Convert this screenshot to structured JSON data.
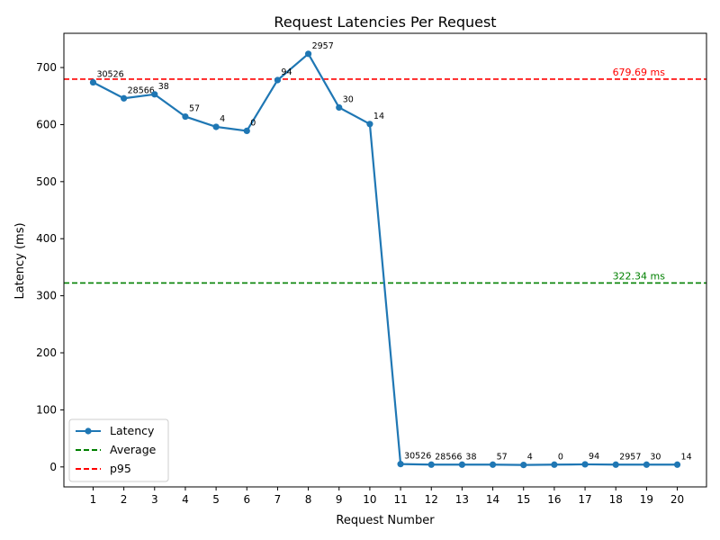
{
  "chart_data": {
    "type": "line",
    "title": "Request Latencies Per Request",
    "xlabel": "Request Number",
    "ylabel": "Latency (ms)",
    "x": [
      1,
      2,
      3,
      4,
      5,
      6,
      7,
      8,
      9,
      10,
      11,
      12,
      13,
      14,
      15,
      16,
      17,
      18,
      19,
      20
    ],
    "xlim": [
      0.05,
      20.95
    ],
    "ylim": [
      -35,
      760
    ],
    "yticks": [
      0,
      100,
      200,
      300,
      400,
      500,
      600,
      700
    ],
    "grid": false,
    "legend_position": "lower-left",
    "series": [
      {
        "name": "Latency",
        "color": "#1f77b4",
        "values": [
          674,
          646,
          653,
          614,
          596,
          589,
          678,
          724,
          630,
          601,
          5,
          4,
          4,
          4,
          3.5,
          4,
          4.5,
          4,
          4,
          4
        ],
        "point_labels": [
          "30526",
          "28566",
          "38",
          "57",
          "4",
          "0",
          "94",
          "2957",
          "30",
          "14",
          "30526",
          "28566",
          "38",
          "57",
          "4",
          "0",
          "94",
          "2957",
          "30",
          "14"
        ]
      }
    ],
    "reference_lines": [
      {
        "name": "Average",
        "value": 322.34,
        "label": "322.34 ms",
        "color": "#008000"
      },
      {
        "name": "p95",
        "value": 679.69,
        "label": "679.69 ms",
        "color": "#ff0000"
      }
    ]
  }
}
